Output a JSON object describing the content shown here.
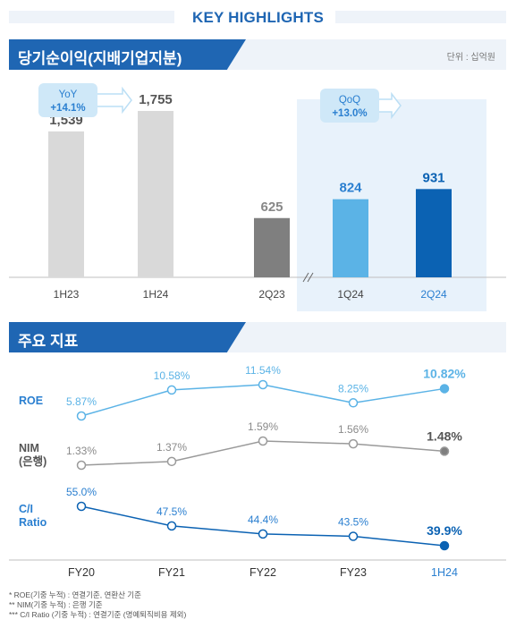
{
  "title": "KEY HIGHLIGHTS",
  "section1": {
    "title": "당기순이익(지배기업지분)",
    "unit": "단위 : 십억원"
  },
  "section2": {
    "title": "주요 지표"
  },
  "colors": {
    "brand": "#1f66b3",
    "light_blue": "#5bb3e6",
    "gray": "#d9d9d9",
    "dark_gray": "#7f7f7f",
    "dark_blue": "#0b62b3"
  },
  "chart_data": [
    {
      "type": "bar",
      "categories": [
        "1H23",
        "1H24"
      ],
      "values": [
        1539,
        1755
      ],
      "value_labels": [
        "1,539",
        "1,755"
      ],
      "badge": {
        "label": "YoY",
        "value": "+14.1%"
      }
    },
    {
      "type": "bar",
      "categories": [
        "2Q23",
        "1Q24",
        "2Q24"
      ],
      "values": [
        625,
        824,
        931
      ],
      "value_labels": [
        "625",
        "824",
        "931"
      ],
      "badge": {
        "label": "QoQ",
        "value": "+13.0%"
      }
    },
    {
      "type": "line",
      "x": [
        "FY20",
        "FY21",
        "FY22",
        "FY23",
        "1H24"
      ],
      "series": [
        {
          "name": "ROE",
          "values": [
            5.87,
            10.58,
            11.54,
            8.25,
            10.82
          ],
          "labels": [
            "5.87%",
            "10.58%",
            "11.54%",
            "8.25%",
            "10.82%"
          ]
        },
        {
          "name": "NIM\n(은행)",
          "values": [
            1.33,
            1.37,
            1.59,
            1.56,
            1.48
          ],
          "labels": [
            "1.33%",
            "1.37%",
            "1.59%",
            "1.56%",
            "1.48%"
          ]
        },
        {
          "name": "C/I\nRatio",
          "values": [
            55.0,
            47.5,
            44.4,
            43.5,
            39.9
          ],
          "labels": [
            "55.0%",
            "47.5%",
            "44.4%",
            "43.5%",
            "39.9%"
          ]
        }
      ]
    }
  ],
  "footnotes": [
    "* ROE(기중 누적) :  연결기준, 연환산 기준",
    "** NIM(기중 누적) : 은행 기준",
    "***  C/I Ratio (기중 누적) :  연결기준 (명예퇴직비용  제외)"
  ]
}
